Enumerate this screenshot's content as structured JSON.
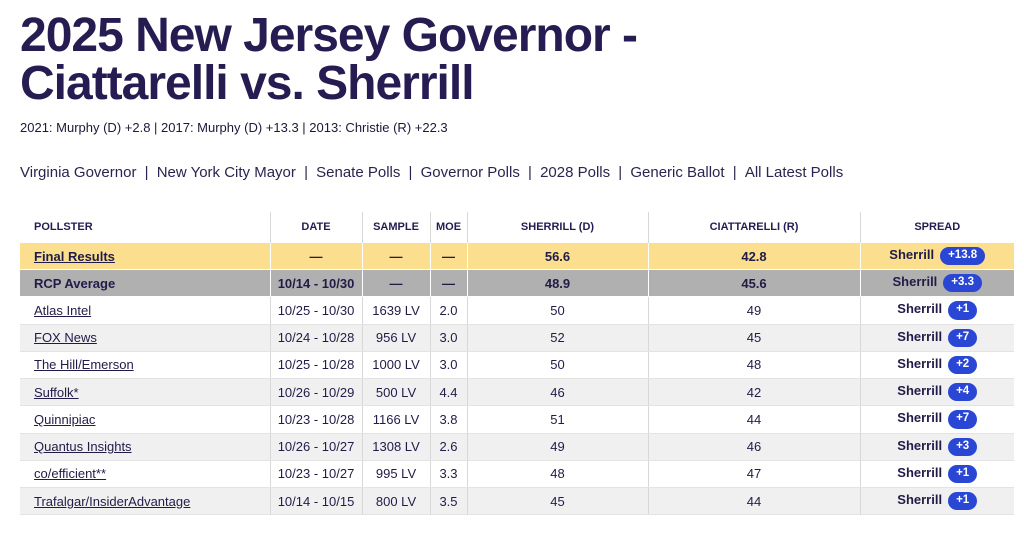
{
  "page": {
    "title": "2025 New Jersey Governor - Ciattarelli vs. Sherrill",
    "subtitle": "2021: Murphy (D) +2.8 | 2017: Murphy (D) +13.3 | 2013: Christie (R) +22.3",
    "nav_links": [
      "Virginia Governor",
      "New York City Mayor",
      "Senate Polls",
      "Governor Polls",
      "2028 Polls",
      "Generic Ballot",
      "All Latest Polls"
    ],
    "nav_separator": "|"
  },
  "table": {
    "columns": [
      "POLLSTER",
      "DATE",
      "SAMPLE",
      "MOE",
      "SHERRILL (D)",
      "CIATTARELLI (R)",
      "SPREAD"
    ],
    "rows": [
      {
        "type": "final",
        "pollster": "Final Results",
        "date": "—",
        "sample": "—",
        "moe": "—",
        "sherrill": "56.6",
        "ciattarelli": "42.8",
        "spread_leader": "Sherrill",
        "spread_value": "+13.8"
      },
      {
        "type": "average",
        "pollster": "RCP Average",
        "date": "10/14 - 10/30",
        "sample": "—",
        "moe": "—",
        "sherrill": "48.9",
        "ciattarelli": "45.6",
        "spread_leader": "Sherrill",
        "spread_value": "+3.3"
      },
      {
        "type": "poll",
        "pollster": "Atlas Intel",
        "date": "10/25 - 10/30",
        "sample": "1639 LV",
        "moe": "2.0",
        "sherrill": "50",
        "ciattarelli": "49",
        "spread_leader": "Sherrill",
        "spread_value": "+1"
      },
      {
        "type": "poll",
        "pollster": "FOX News",
        "date": "10/24 - 10/28",
        "sample": "956 LV",
        "moe": "3.0",
        "sherrill": "52",
        "ciattarelli": "45",
        "spread_leader": "Sherrill",
        "spread_value": "+7"
      },
      {
        "type": "poll",
        "pollster": "The Hill/Emerson",
        "date": "10/25 - 10/28",
        "sample": "1000 LV",
        "moe": "3.0",
        "sherrill": "50",
        "ciattarelli": "48",
        "spread_leader": "Sherrill",
        "spread_value": "+2"
      },
      {
        "type": "poll",
        "pollster": "Suffolk*",
        "date": "10/26 - 10/29",
        "sample": "500 LV",
        "moe": "4.4",
        "sherrill": "46",
        "ciattarelli": "42",
        "spread_leader": "Sherrill",
        "spread_value": "+4"
      },
      {
        "type": "poll",
        "pollster": "Quinnipiac",
        "date": "10/23 - 10/28",
        "sample": "1166 LV",
        "moe": "3.8",
        "sherrill": "51",
        "ciattarelli": "44",
        "spread_leader": "Sherrill",
        "spread_value": "+7"
      },
      {
        "type": "poll",
        "pollster": "Quantus Insights",
        "date": "10/26 - 10/27",
        "sample": "1308 LV",
        "moe": "2.6",
        "sherrill": "49",
        "ciattarelli": "46",
        "spread_leader": "Sherrill",
        "spread_value": "+3"
      },
      {
        "type": "poll",
        "pollster": "co/efficient**",
        "date": "10/23 - 10/27",
        "sample": "995 LV",
        "moe": "3.3",
        "sherrill": "48",
        "ciattarelli": "47",
        "spread_leader": "Sherrill",
        "spread_value": "+1"
      },
      {
        "type": "poll",
        "pollster": "Trafalgar/InsiderAdvantage",
        "date": "10/14 - 10/15",
        "sample": "800 LV",
        "moe": "3.5",
        "sherrill": "45",
        "ciattarelli": "44",
        "spread_leader": "Sherrill",
        "spread_value": "+1"
      }
    ]
  },
  "colors": {
    "title_color": "#261c52",
    "text_color": "#201c47",
    "accent_yellow": "#fbdf8f",
    "average_gray": "#b1b0b0",
    "badge_blue": "#2a46d4",
    "alt_row": "#f0f0f0",
    "divider": "#d8d8d8"
  }
}
